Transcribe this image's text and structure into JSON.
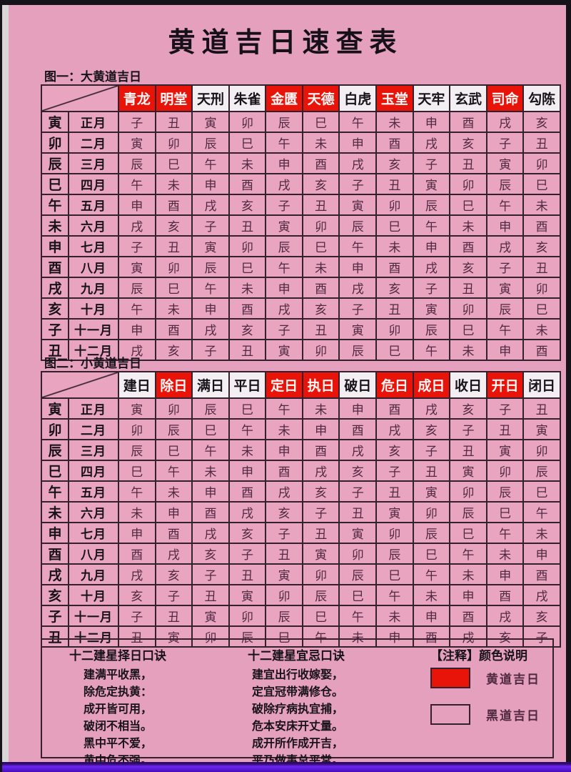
{
  "page_title": "黄道吉日速查表",
  "colors": {
    "auspicious_red": "#e81309",
    "page_pink": "#e5a0bd",
    "bottom_strip_purple": "#5a17d8",
    "border_dark": "#35202e"
  },
  "table1": {
    "label": "图一：大黄道吉日",
    "headers": [
      {
        "label": "青龙",
        "red": true
      },
      {
        "label": "明堂",
        "red": true
      },
      {
        "label": "天刑",
        "red": false
      },
      {
        "label": "朱雀",
        "red": false
      },
      {
        "label": "金匮",
        "red": true
      },
      {
        "label": "天德",
        "red": true
      },
      {
        "label": "白虎",
        "red": false
      },
      {
        "label": "玉堂",
        "red": true
      },
      {
        "label": "天牢",
        "red": false
      },
      {
        "label": "玄武",
        "red": false
      },
      {
        "label": "司命",
        "red": true
      },
      {
        "label": "勾陈",
        "red": false
      }
    ],
    "rows": [
      {
        "branch": "寅",
        "month": "正月",
        "cells": [
          "子",
          "丑",
          "寅",
          "卯",
          "辰",
          "巳",
          "午",
          "未",
          "申",
          "酉",
          "戌",
          "亥"
        ]
      },
      {
        "branch": "卯",
        "month": "二月",
        "cells": [
          "寅",
          "卯",
          "辰",
          "巳",
          "午",
          "未",
          "申",
          "酉",
          "戌",
          "亥",
          "子",
          "丑"
        ]
      },
      {
        "branch": "辰",
        "month": "三月",
        "cells": [
          "辰",
          "巳",
          "午",
          "未",
          "申",
          "酉",
          "戌",
          "亥",
          "子",
          "丑",
          "寅",
          "卯"
        ]
      },
      {
        "branch": "巳",
        "month": "四月",
        "cells": [
          "午",
          "未",
          "申",
          "酉",
          "戌",
          "亥",
          "子",
          "丑",
          "寅",
          "卯",
          "辰",
          "巳"
        ]
      },
      {
        "branch": "午",
        "month": "五月",
        "cells": [
          "申",
          "酉",
          "戌",
          "亥",
          "子",
          "丑",
          "寅",
          "卯",
          "辰",
          "巳",
          "午",
          "未"
        ]
      },
      {
        "branch": "未",
        "month": "六月",
        "cells": [
          "戌",
          "亥",
          "子",
          "丑",
          "寅",
          "卯",
          "辰",
          "巳",
          "午",
          "未",
          "申",
          "酉"
        ]
      },
      {
        "branch": "申",
        "month": "七月",
        "cells": [
          "子",
          "丑",
          "寅",
          "卯",
          "辰",
          "巳",
          "午",
          "未",
          "申",
          "酉",
          "戌",
          "亥"
        ]
      },
      {
        "branch": "酉",
        "month": "八月",
        "cells": [
          "寅",
          "卯",
          "辰",
          "巳",
          "午",
          "未",
          "申",
          "酉",
          "戌",
          "亥",
          "子",
          "丑"
        ]
      },
      {
        "branch": "戌",
        "month": "九月",
        "cells": [
          "辰",
          "巳",
          "午",
          "未",
          "申",
          "酉",
          "戌",
          "亥",
          "子",
          "丑",
          "寅",
          "卯"
        ]
      },
      {
        "branch": "亥",
        "month": "十月",
        "cells": [
          "午",
          "未",
          "申",
          "酉",
          "戌",
          "亥",
          "子",
          "丑",
          "寅",
          "卯",
          "辰",
          "巳"
        ]
      },
      {
        "branch": "子",
        "month": "十一月",
        "cells": [
          "申",
          "酉",
          "戌",
          "亥",
          "子",
          "丑",
          "寅",
          "卯",
          "辰",
          "巳",
          "午",
          "未"
        ]
      },
      {
        "branch": "丑",
        "month": "十二月",
        "cells": [
          "戌",
          "亥",
          "子",
          "丑",
          "寅",
          "卯",
          "辰",
          "巳",
          "午",
          "未",
          "申",
          "酉"
        ]
      }
    ]
  },
  "table2": {
    "label": "图二：小黄道吉日",
    "headers": [
      {
        "label": "建日",
        "red": false
      },
      {
        "label": "除日",
        "red": true
      },
      {
        "label": "满日",
        "red": false
      },
      {
        "label": "平日",
        "red": false
      },
      {
        "label": "定日",
        "red": true
      },
      {
        "label": "执日",
        "red": true
      },
      {
        "label": "破日",
        "red": false
      },
      {
        "label": "危日",
        "red": true
      },
      {
        "label": "成日",
        "red": true
      },
      {
        "label": "收日",
        "red": false
      },
      {
        "label": "开日",
        "red": true
      },
      {
        "label": "闭日",
        "red": false
      }
    ],
    "rows": [
      {
        "branch": "寅",
        "month": "正月",
        "cells": [
          "寅",
          "卯",
          "辰",
          "巳",
          "午",
          "未",
          "申",
          "酉",
          "戌",
          "亥",
          "子",
          "丑"
        ]
      },
      {
        "branch": "卯",
        "month": "二月",
        "cells": [
          "卯",
          "辰",
          "巳",
          "午",
          "未",
          "申",
          "酉",
          "戌",
          "亥",
          "子",
          "丑",
          "寅"
        ]
      },
      {
        "branch": "辰",
        "month": "三月",
        "cells": [
          "辰",
          "巳",
          "午",
          "未",
          "申",
          "酉",
          "戌",
          "亥",
          "子",
          "丑",
          "寅",
          "卯"
        ]
      },
      {
        "branch": "巳",
        "month": "四月",
        "cells": [
          "巳",
          "午",
          "未",
          "申",
          "酉",
          "戌",
          "亥",
          "子",
          "丑",
          "寅",
          "卯",
          "辰"
        ]
      },
      {
        "branch": "午",
        "month": "五月",
        "cells": [
          "午",
          "未",
          "申",
          "酉",
          "戌",
          "亥",
          "子",
          "丑",
          "寅",
          "卯",
          "辰",
          "巳"
        ]
      },
      {
        "branch": "未",
        "month": "六月",
        "cells": [
          "未",
          "申",
          "酉",
          "戌",
          "亥",
          "子",
          "丑",
          "寅",
          "卯",
          "辰",
          "巳",
          "午"
        ]
      },
      {
        "branch": "申",
        "month": "七月",
        "cells": [
          "申",
          "酉",
          "戌",
          "亥",
          "子",
          "丑",
          "寅",
          "卯",
          "辰",
          "巳",
          "午",
          "未"
        ]
      },
      {
        "branch": "酉",
        "month": "八月",
        "cells": [
          "酉",
          "戌",
          "亥",
          "子",
          "丑",
          "寅",
          "卯",
          "辰",
          "巳",
          "午",
          "未",
          "申"
        ]
      },
      {
        "branch": "戌",
        "month": "九月",
        "cells": [
          "戌",
          "亥",
          "子",
          "丑",
          "寅",
          "卯",
          "辰",
          "巳",
          "午",
          "未",
          "申",
          "酉"
        ]
      },
      {
        "branch": "亥",
        "month": "十月",
        "cells": [
          "亥",
          "子",
          "丑",
          "寅",
          "卯",
          "辰",
          "巳",
          "午",
          "未",
          "申",
          "酉",
          "戌"
        ]
      },
      {
        "branch": "子",
        "month": "十一月",
        "cells": [
          "子",
          "丑",
          "寅",
          "卯",
          "辰",
          "巳",
          "午",
          "未",
          "申",
          "酉",
          "戌",
          "亥"
        ]
      },
      {
        "branch": "丑",
        "month": "十二月",
        "cells": [
          "丑",
          "寅",
          "卯",
          "辰",
          "巳",
          "午",
          "未",
          "申",
          "酉",
          "戌",
          "亥",
          "子"
        ]
      }
    ]
  },
  "footer": {
    "left": {
      "title": "十二建星择日口诀",
      "lines": [
        "建满平收黑，",
        "除危定执黄：",
        "成开皆可用，",
        "破闭不相当。",
        "黑中平不爱，",
        "黄中危不强。"
      ]
    },
    "middle": {
      "title": "十二建星宜忌口诀",
      "lines": [
        "建宜出行收嫁娶，",
        "定宜冠带满修仓。",
        "破除疗病执宜捕，",
        "危本安床开丈量。",
        "成开所作成开吉，",
        "平乃做事总平常。"
      ]
    },
    "legend": {
      "title": "【注释】颜色说明",
      "items": [
        {
          "swatch": "red",
          "label": "黄道吉日"
        },
        {
          "swatch": "outline",
          "label": "黑道吉日"
        }
      ]
    }
  }
}
